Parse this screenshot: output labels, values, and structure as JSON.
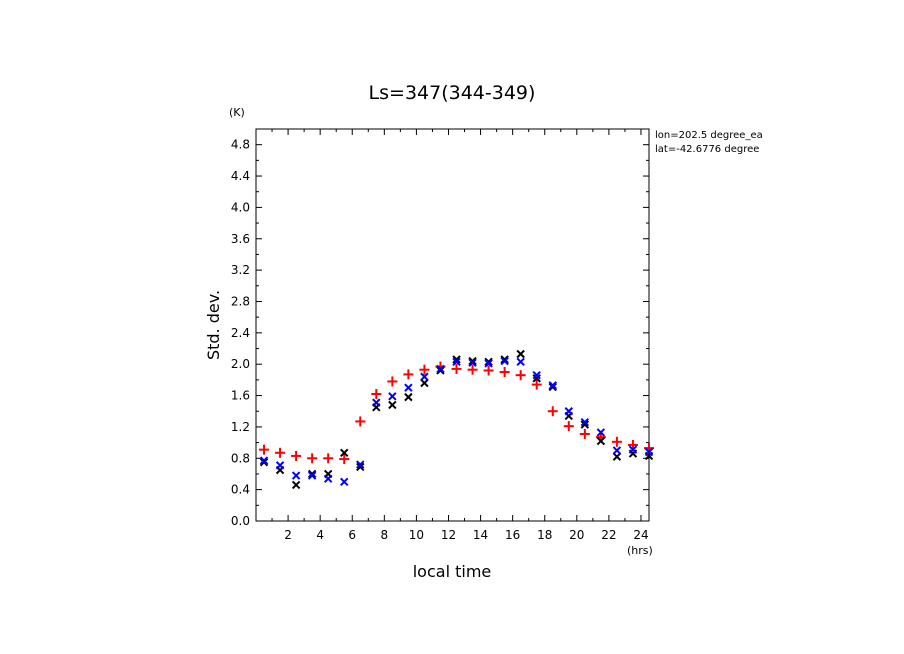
{
  "chart_data": {
    "type": "scatter",
    "title": "Ls=347(344-349)",
    "xlabel": "local time",
    "xunit": "(hrs)",
    "ylabel": "Std. dev.",
    "yunit": "(K)",
    "annotations": [
      "lon=202.5 degree_ea",
      "lat=-42.6776 degree"
    ],
    "xlim": [
      0,
      24.5
    ],
    "ylim": [
      0,
      5.0
    ],
    "xticks": [
      2,
      4,
      6,
      8,
      10,
      12,
      14,
      16,
      18,
      20,
      22,
      24
    ],
    "yticks": [
      0.0,
      0.4,
      0.8,
      1.2,
      1.6,
      2.0,
      2.4,
      2.8,
      3.2,
      3.6,
      4.0,
      4.4,
      4.8
    ],
    "ytick_labels": [
      "0.0",
      "0.4",
      "0.8",
      "1.2",
      "1.6",
      "2.0",
      "2.4",
      "2.8",
      "3.2",
      "3.6",
      "4.0",
      "4.4",
      "4.8"
    ],
    "grid": false,
    "x": [
      0.5,
      1.5,
      2.5,
      3.5,
      4.5,
      5.5,
      6.5,
      7.5,
      8.5,
      9.5,
      10.5,
      11.5,
      12.5,
      13.5,
      14.5,
      15.5,
      16.5,
      17.5,
      18.5,
      19.5,
      20.5,
      21.5,
      22.5,
      23.5,
      24.5
    ],
    "series": [
      {
        "marker": "plus",
        "color": "#ff0000",
        "values": [
          0.91,
          0.87,
          0.83,
          0.8,
          0.8,
          0.79,
          1.27,
          1.62,
          1.78,
          1.87,
          1.93,
          1.97,
          1.94,
          1.93,
          1.92,
          1.9,
          1.86,
          1.74,
          1.4,
          1.21,
          1.11,
          1.07,
          1.01,
          0.97,
          0.93
        ]
      },
      {
        "marker": "x",
        "color": "#000000",
        "values": [
          0.75,
          0.65,
          0.46,
          0.6,
          0.6,
          0.87,
          0.69,
          1.45,
          1.48,
          1.58,
          1.76,
          1.92,
          2.06,
          2.04,
          2.03,
          2.06,
          2.13,
          1.82,
          1.71,
          1.34,
          1.23,
          1.02,
          0.82,
          0.86,
          0.83
        ]
      },
      {
        "marker": "x",
        "color": "#0000ff",
        "values": [
          0.77,
          0.71,
          0.58,
          0.58,
          0.54,
          0.5,
          0.72,
          1.51,
          1.59,
          1.7,
          1.84,
          1.94,
          2.03,
          2.02,
          2.01,
          2.04,
          2.03,
          1.86,
          1.73,
          1.4,
          1.26,
          1.13,
          0.9,
          0.91,
          0.88
        ]
      }
    ]
  }
}
